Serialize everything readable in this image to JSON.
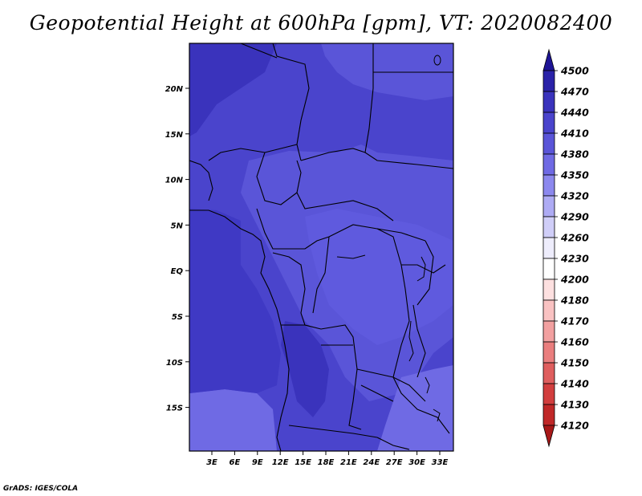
{
  "title": "Geopotential Height at 600hPa [gpm], VT: 2020082400",
  "credit": "GrADS: IGES/COLA",
  "map": {
    "lat_ticks": [
      "20N",
      "15N",
      "10N",
      "5N",
      "EQ",
      "5S",
      "10S",
      "15S"
    ],
    "lon_ticks": [
      "3E",
      "6E",
      "9E",
      "12E",
      "15E",
      "18E",
      "21E",
      "24E",
      "27E",
      "30E",
      "33E"
    ]
  },
  "colorbar": {
    "levels": [
      "4500",
      "4470",
      "4440",
      "4410",
      "4380",
      "4350",
      "4320",
      "4290",
      "4260",
      "4230",
      "4200",
      "4180",
      "4170",
      "4160",
      "4150",
      "4140",
      "4130",
      "4120"
    ],
    "colors": [
      "#1e1496",
      "#2a22a8",
      "#3a33bc",
      "#4a44cc",
      "#5a55d8",
      "#6f6ae4",
      "#8c88ee",
      "#aeabf4",
      "#d0cef8",
      "#eeedfc",
      "#ffffff",
      "#fde0e0",
      "#f9c2c2",
      "#f2a0a0",
      "#ea7e7e",
      "#df5e5e",
      "#d23e3e",
      "#c02828",
      "#a81818"
    ]
  }
}
